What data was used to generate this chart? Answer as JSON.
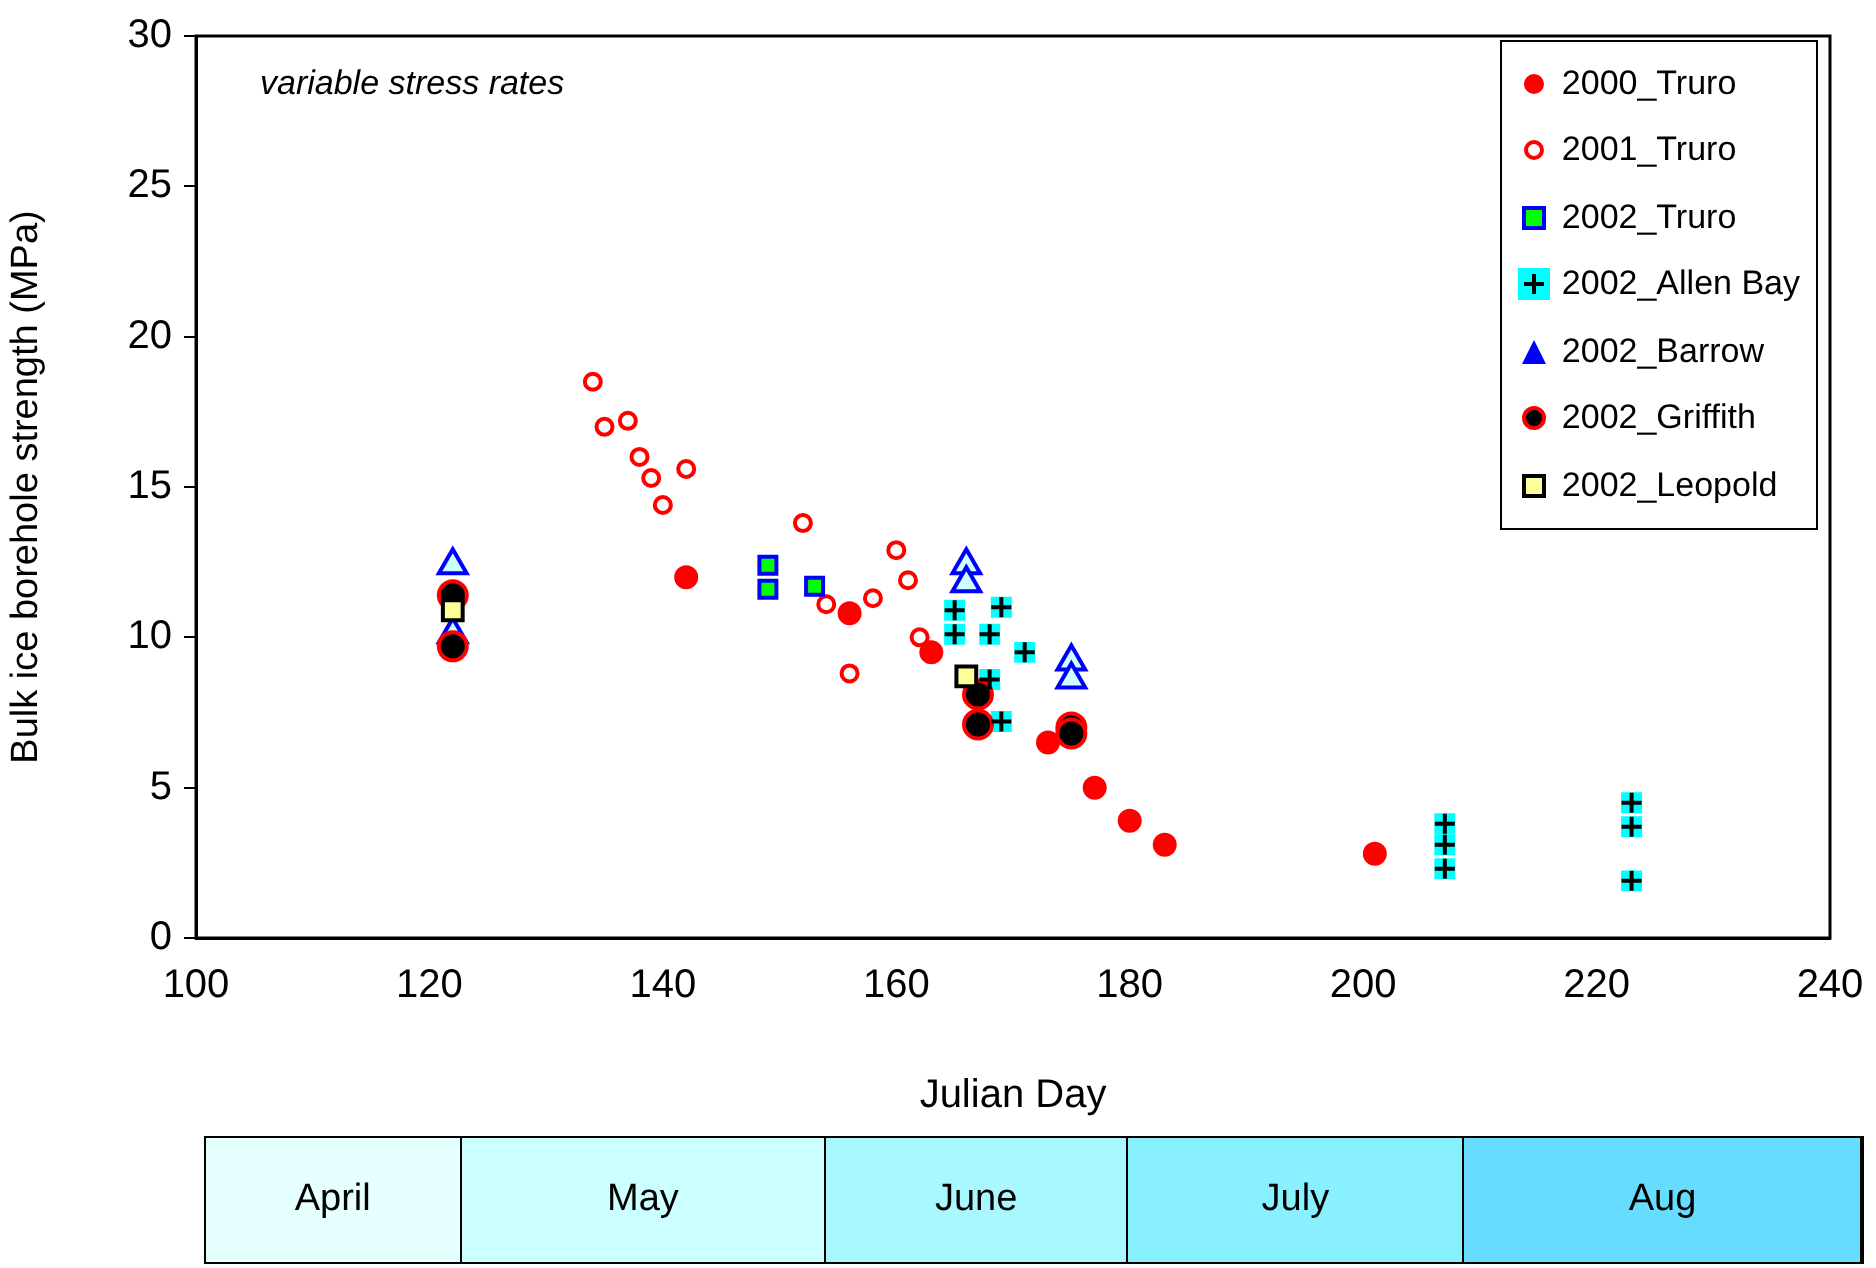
{
  "chart_data": {
    "type": "scatter",
    "xlabel": "Julian Day",
    "ylabel": "Bulk ice borehole strength (MPa)",
    "xlim": [
      100,
      240
    ],
    "xticks": [
      100,
      120,
      140,
      160,
      180,
      200,
      220,
      240
    ],
    "ylim": [
      0,
      30
    ],
    "yticks": [
      0,
      5,
      10,
      15,
      20,
      25,
      30
    ],
    "grid": false,
    "legend": "top right",
    "annotations": [
      "variable stress rates",
      "April",
      "May",
      "June",
      "July",
      "Aug"
    ],
    "series": [
      {
        "name": "2000_Truro",
        "color": "#ff0000",
        "marker": "circle",
        "x": [
          142,
          156,
          163,
          173,
          177,
          180,
          183,
          201
        ],
        "values": [
          12.0,
          10.8,
          9.5,
          6.5,
          5.0,
          3.9,
          3.1,
          2.8
        ]
      },
      {
        "name": "2001_Truro",
        "color": "#ff0000",
        "marker": "circle",
        "x": [
          134,
          135,
          137,
          138,
          139,
          140,
          142,
          152,
          154,
          156,
          158,
          160,
          161,
          162
        ],
        "values": [
          18.5,
          17.0,
          17.2,
          16.0,
          15.3,
          14.4,
          15.6,
          13.8,
          11.1,
          8.8,
          11.3,
          12.9,
          11.9,
          10.0
        ]
      },
      {
        "name": "2002_Truro",
        "color": "#00ff00",
        "marker": "square",
        "x": [
          149,
          149,
          153
        ],
        "values": [
          12.4,
          11.6,
          11.7
        ]
      },
      {
        "name": "2002_Allen Bay",
        "color": "#00ffff",
        "marker": "square",
        "x": [
          165,
          165,
          168,
          169,
          171,
          168,
          169,
          207,
          207,
          207,
          223,
          223,
          223
        ],
        "values": [
          10.9,
          10.1,
          10.1,
          11.0,
          9.5,
          8.6,
          7.2,
          3.8,
          3.1,
          2.3,
          4.5,
          3.7,
          1.9
        ]
      },
      {
        "name": "2002_Barrow",
        "color": "#0000ff",
        "marker": "triangle",
        "x": [
          122,
          122,
          166,
          166,
          175,
          175
        ],
        "values": [
          12.4,
          10.1,
          12.4,
          11.8,
          9.2,
          8.6
        ]
      },
      {
        "name": "2002_Griffith",
        "color": "#000000",
        "marker": "circle",
        "x": [
          122,
          122,
          167,
          167,
          175,
          175
        ],
        "values": [
          11.4,
          9.7,
          8.1,
          7.1,
          7.0,
          6.8
        ]
      },
      {
        "name": "2002_Leopold",
        "color": "#ffff99",
        "marker": "square",
        "x": [
          122,
          166
        ],
        "values": [
          10.9,
          8.7
        ]
      }
    ]
  }
}
